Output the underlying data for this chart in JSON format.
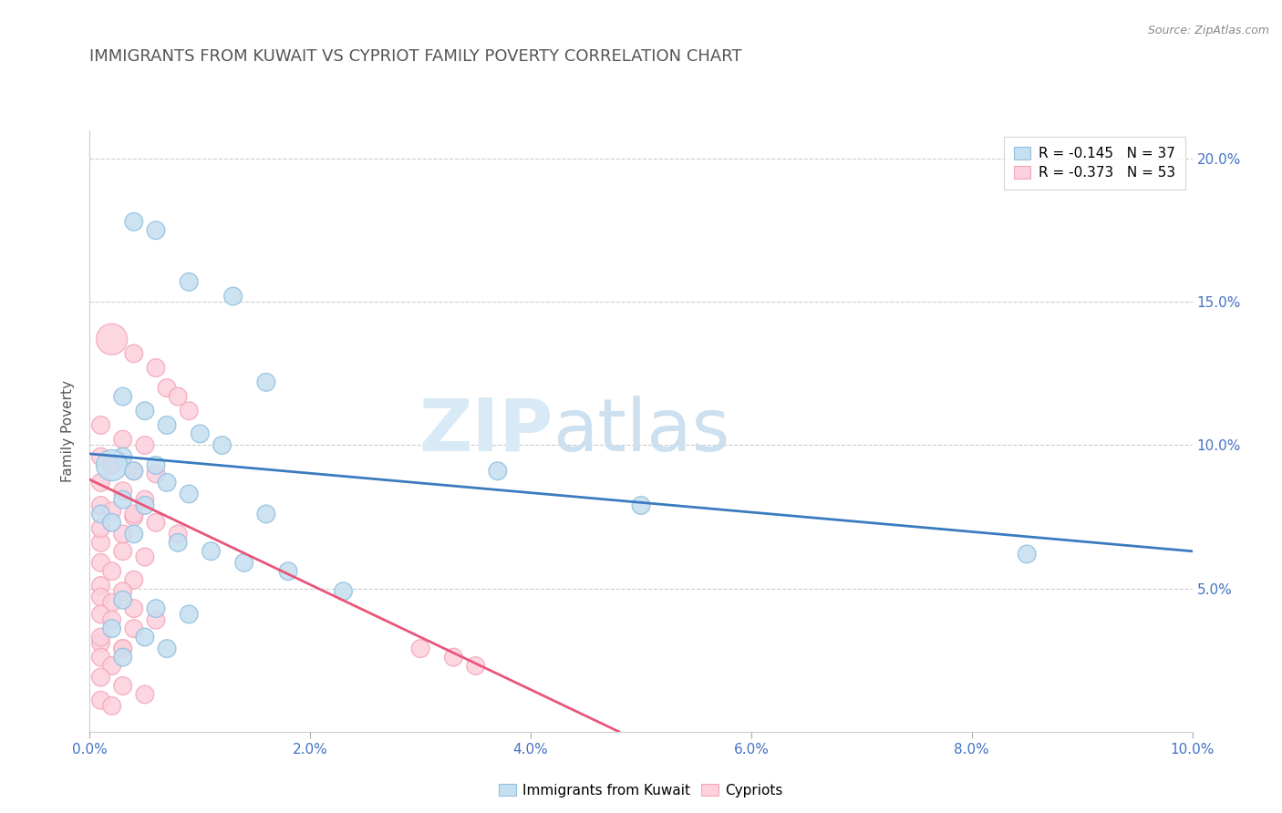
{
  "title": "IMMIGRANTS FROM KUWAIT VS CYPRIOT FAMILY POVERTY CORRELATION CHART",
  "source": "Source: ZipAtlas.com",
  "ylabel": "Family Poverty",
  "legend_label1": "Immigrants from Kuwait",
  "legend_label2": "Cypriots",
  "legend_r1": "R = -0.145",
  "legend_n1": "N = 37",
  "legend_r2": "R = -0.373",
  "legend_n2": "N = 53",
  "watermark_zip": "ZIP",
  "watermark_atlas": "atlas",
  "color_blue": "#92c0e0",
  "color_pink": "#f4a7bb",
  "color_blue_fill": "#c5dff0",
  "color_pink_fill": "#fcd0dc",
  "color_blue_line": "#3a7bbf",
  "color_pink_line": "#e8567a",
  "xmin": 0.0,
  "xmax": 0.1,
  "ymin": 0.0,
  "ymax": 0.21,
  "yticks": [
    0.05,
    0.1,
    0.15,
    0.2
  ],
  "ytick_labels": [
    "5.0%",
    "10.0%",
    "15.0%",
    "20.0%"
  ],
  "blue_scatter_x": [
    0.004,
    0.006,
    0.009,
    0.013,
    0.016,
    0.003,
    0.005,
    0.007,
    0.01,
    0.012,
    0.003,
    0.006,
    0.002,
    0.004,
    0.007,
    0.009,
    0.003,
    0.005,
    0.001,
    0.002,
    0.004,
    0.008,
    0.011,
    0.014,
    0.018,
    0.023,
    0.003,
    0.006,
    0.009,
    0.037,
    0.05,
    0.002,
    0.005,
    0.085,
    0.007,
    0.003,
    0.016
  ],
  "blue_scatter_y": [
    0.178,
    0.175,
    0.157,
    0.152,
    0.122,
    0.117,
    0.112,
    0.107,
    0.104,
    0.1,
    0.096,
    0.093,
    0.093,
    0.091,
    0.087,
    0.083,
    0.081,
    0.079,
    0.076,
    0.073,
    0.069,
    0.066,
    0.063,
    0.059,
    0.056,
    0.049,
    0.046,
    0.043,
    0.041,
    0.091,
    0.079,
    0.036,
    0.033,
    0.062,
    0.029,
    0.026,
    0.076
  ],
  "blue_scatter_size": [
    200,
    200,
    200,
    200,
    200,
    200,
    200,
    200,
    200,
    200,
    200,
    200,
    600,
    200,
    200,
    200,
    200,
    200,
    200,
    200,
    200,
    200,
    200,
    200,
    200,
    200,
    200,
    200,
    200,
    200,
    200,
    200,
    200,
    200,
    200,
    200,
    200
  ],
  "pink_scatter_x": [
    0.002,
    0.004,
    0.006,
    0.007,
    0.008,
    0.009,
    0.001,
    0.003,
    0.005,
    0.001,
    0.002,
    0.004,
    0.006,
    0.001,
    0.003,
    0.005,
    0.001,
    0.002,
    0.004,
    0.006,
    0.008,
    0.001,
    0.003,
    0.005,
    0.001,
    0.002,
    0.004,
    0.001,
    0.003,
    0.001,
    0.002,
    0.004,
    0.006,
    0.03,
    0.033,
    0.035,
    0.001,
    0.003,
    0.001,
    0.002,
    0.001,
    0.003,
    0.005,
    0.001,
    0.002,
    0.004,
    0.001,
    0.003,
    0.001,
    0.002,
    0.004,
    0.001,
    0.003
  ],
  "pink_scatter_y": [
    0.137,
    0.132,
    0.127,
    0.12,
    0.117,
    0.112,
    0.107,
    0.102,
    0.1,
    0.096,
    0.093,
    0.091,
    0.09,
    0.087,
    0.084,
    0.081,
    0.079,
    0.077,
    0.075,
    0.073,
    0.069,
    0.066,
    0.063,
    0.061,
    0.059,
    0.056,
    0.053,
    0.051,
    0.049,
    0.047,
    0.045,
    0.043,
    0.039,
    0.029,
    0.026,
    0.023,
    0.031,
    0.029,
    0.026,
    0.023,
    0.019,
    0.016,
    0.013,
    0.041,
    0.039,
    0.036,
    0.033,
    0.029,
    0.011,
    0.009,
    0.076,
    0.071,
    0.069
  ],
  "pink_scatter_size": [
    600,
    200,
    200,
    200,
    200,
    200,
    200,
    200,
    200,
    200,
    200,
    200,
    200,
    200,
    200,
    200,
    200,
    200,
    200,
    200,
    200,
    200,
    200,
    200,
    200,
    200,
    200,
    200,
    200,
    200,
    200,
    200,
    200,
    200,
    200,
    200,
    200,
    200,
    200,
    200,
    200,
    200,
    200,
    200,
    200,
    200,
    200,
    200,
    200,
    200,
    200,
    200,
    200
  ],
  "blue_line_x": [
    0.0,
    0.1
  ],
  "blue_line_y": [
    0.097,
    0.063
  ],
  "pink_line_x": [
    0.0,
    0.048
  ],
  "pink_line_y": [
    0.088,
    0.0
  ],
  "grid_color": "#cccccc",
  "title_color": "#555555",
  "axis_color": "#4472c4",
  "right_axis_color": "#4472c4"
}
